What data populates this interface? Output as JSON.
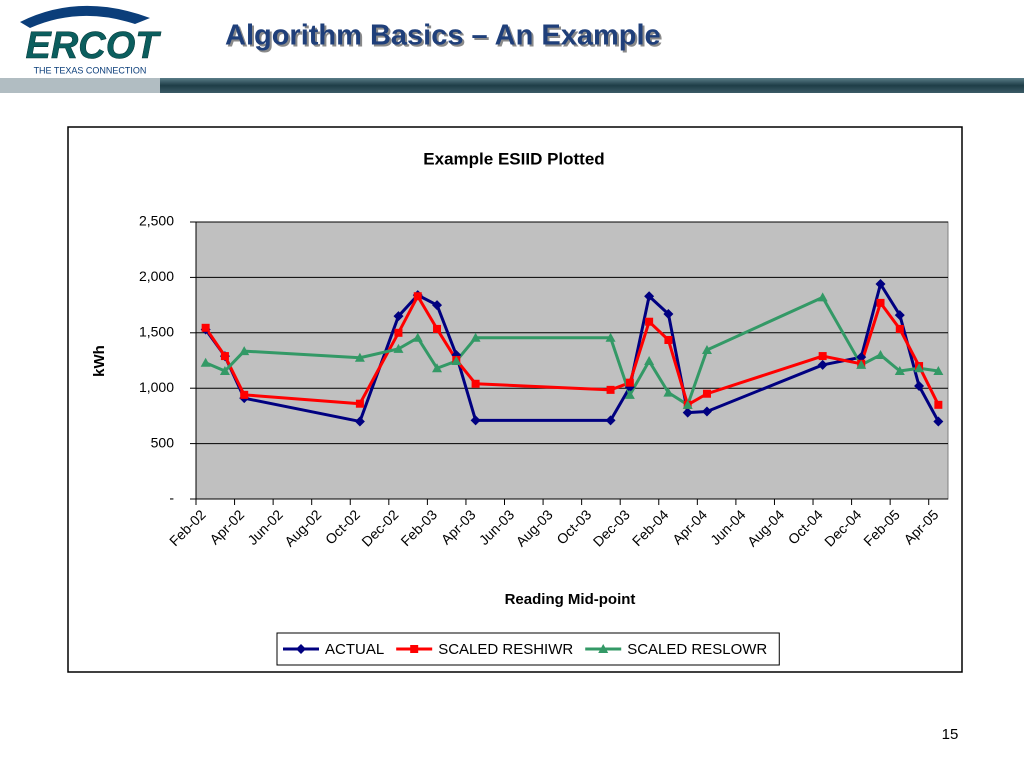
{
  "header": {
    "logo_text": "ERCOT",
    "logo_tagline": "THE TEXAS CONNECTION",
    "title": "Algorithm Basics – An Example"
  },
  "page_number": 15,
  "chart_data": {
    "type": "line",
    "title": "Example ESIID Plotted",
    "x_label": "Reading Mid-point",
    "y_label": "kWh",
    "x": [
      "2002-02",
      "2002-03",
      "2002-04",
      "2002-10",
      "2002-12",
      "2003-01",
      "2003-02",
      "2003-03",
      "2003-04",
      "2003-11",
      "2003-12",
      "2004-01",
      "2004-02",
      "2004-03",
      "2004-04",
      "2004-10",
      "2004-12",
      "2005-01",
      "2005-02",
      "2005-03",
      "2005-04"
    ],
    "xlim": [
      "2002-02",
      "2005-05"
    ],
    "xticks": [
      {
        "value": "2002-02",
        "label": "Feb-02"
      },
      {
        "value": "2002-04",
        "label": "Apr-02"
      },
      {
        "value": "2002-06",
        "label": "Jun-02"
      },
      {
        "value": "2002-08",
        "label": "Aug-02"
      },
      {
        "value": "2002-10",
        "label": "Oct-02"
      },
      {
        "value": "2002-12",
        "label": "Dec-02"
      },
      {
        "value": "2003-02",
        "label": "Feb-03"
      },
      {
        "value": "2003-04",
        "label": "Apr-03"
      },
      {
        "value": "2003-06",
        "label": "Jun-03"
      },
      {
        "value": "2003-08",
        "label": "Aug-03"
      },
      {
        "value": "2003-10",
        "label": "Oct-03"
      },
      {
        "value": "2003-12",
        "label": "Dec-03"
      },
      {
        "value": "2004-02",
        "label": "Feb-04"
      },
      {
        "value": "2004-04",
        "label": "Apr-04"
      },
      {
        "value": "2004-06",
        "label": "Jun-04"
      },
      {
        "value": "2004-08",
        "label": "Aug-04"
      },
      {
        "value": "2004-10",
        "label": "Oct-04"
      },
      {
        "value": "2004-12",
        "label": "Dec-04"
      },
      {
        "value": "2005-02",
        "label": "Feb-05"
      },
      {
        "value": "2005-04",
        "label": "Apr-05"
      }
    ],
    "ylim": [
      0,
      2500
    ],
    "yticks": [
      {
        "value": 0,
        "label": "-"
      },
      500,
      {
        "value": 1000,
        "label": "1,000"
      },
      {
        "value": 1500,
        "label": "1,500"
      },
      {
        "value": 2000,
        "label": "2,000"
      },
      {
        "value": 2500,
        "label": "2,500"
      }
    ],
    "grid": true,
    "legend": "bottom",
    "series": [
      {
        "name": "ACTUAL",
        "color": "#000080",
        "marker": "diamond",
        "values": [
          1530,
          1290,
          910,
          700,
          1650,
          1840,
          1750,
          1300,
          710,
          710,
          1010,
          1830,
          1670,
          780,
          790,
          1210,
          1280,
          1940,
          1660,
          1020,
          700
        ]
      },
      {
        "name": "SCALED RESHIWR",
        "color": "#ff0000",
        "marker": "square",
        "values": [
          1545,
          1290,
          940,
          860,
          1500,
          1830,
          1535,
          1255,
          1040,
          985,
          1050,
          1600,
          1435,
          850,
          950,
          1290,
          1220,
          1770,
          1535,
          1200,
          850
        ]
      },
      {
        "name": "SCALED RESLOWR",
        "color": "#339966",
        "marker": "triangle",
        "values": [
          1230,
          1155,
          1335,
          1275,
          1355,
          1455,
          1180,
          1245,
          1455,
          1455,
          940,
          1245,
          960,
          850,
          1345,
          1820,
          1210,
          1300,
          1155,
          1180,
          1155
        ]
      }
    ]
  }
}
